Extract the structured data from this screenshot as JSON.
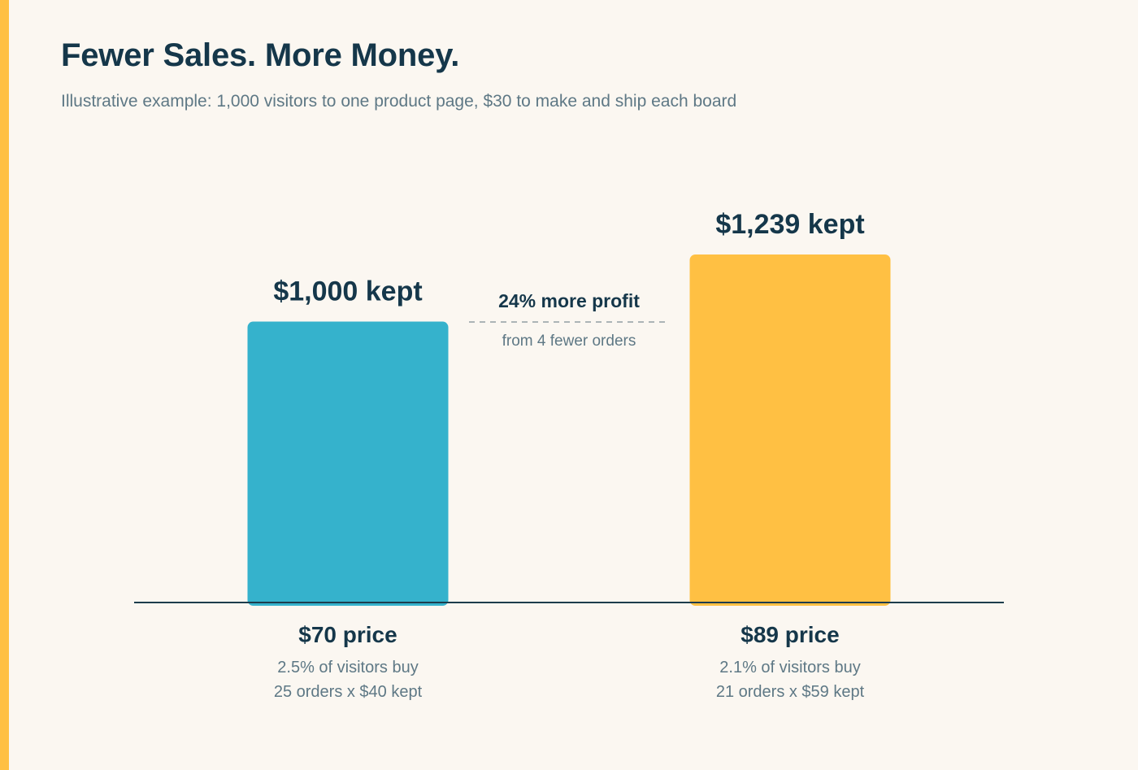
{
  "header": {
    "title": "Fewer Sales. More Money.",
    "subtitle": "Illustrative example: 1,000 visitors to one product page, $30 to make and ship each board"
  },
  "colors": {
    "accent": "#FFC043",
    "background": "#FBF7F1",
    "text_dark": "#15374A",
    "text_muted": "#5E7885"
  },
  "chart_data": {
    "type": "bar",
    "categories": [
      "$70 price",
      "$89 price"
    ],
    "values": [
      1000,
      1239
    ],
    "value_labels": [
      "$1,000 kept",
      "$1,239 kept"
    ],
    "bar_colors": [
      "#35B2CC",
      "#FFC043"
    ],
    "details": [
      [
        "2.5% of visitors buy",
        "25 orders x $40 kept"
      ],
      [
        "2.1% of visitors buy",
        "21 orders x $59 kept"
      ]
    ],
    "annotation": {
      "title": "24% more profit",
      "subtitle": "from 4 fewer orders"
    },
    "ylim": [
      0,
      1239
    ],
    "grid": false,
    "title": "",
    "xlabel": "",
    "ylabel": ""
  }
}
